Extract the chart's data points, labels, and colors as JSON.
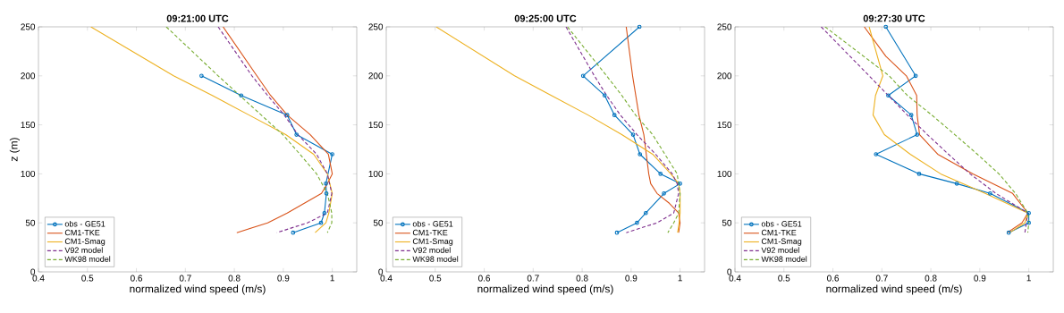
{
  "chart_data": [
    {
      "type": "line",
      "title": "09:21:00 UTC",
      "xlabel": "normalized wind speed (m/s)",
      "ylabel": "z (m)",
      "xlim": [
        0.4,
        1.05
      ],
      "ylim": [
        0,
        250
      ],
      "xticks": [
        0.4,
        0.5,
        0.6,
        0.7,
        0.8,
        0.9,
        1
      ],
      "yticks": [
        0,
        50,
        100,
        150,
        200,
        250
      ],
      "legend": "bottom left",
      "series": [
        {
          "name": "obs - GE51",
          "color": "#0072bd",
          "marker": "circle",
          "line_style": "solid",
          "x": [
            0.733,
            0.814,
            0.908,
            0.927,
            1.0,
            0.987,
            0.988,
            0.984,
            0.977,
            0.92
          ],
          "values": [
            200,
            180,
            160,
            140,
            120,
            90,
            80,
            60,
            50,
            40
          ]
        },
        {
          "name": "CM1-TKE",
          "color": "#d95319",
          "marker": "none",
          "line_style": "solid",
          "x": [
            0.777,
            0.846,
            0.874,
            0.908,
            0.955,
            0.992,
            1.0,
            0.99,
            0.978,
            0.943,
            0.908,
            0.868,
            0.805
          ],
          "values": [
            250,
            200,
            180,
            160,
            140,
            120,
            100,
            90,
            80,
            70,
            60,
            50,
            40
          ]
        },
        {
          "name": "CM1-Smag",
          "color": "#edb120",
          "marker": "none",
          "line_style": "solid",
          "x": [
            0.507,
            0.676,
            0.755,
            0.83,
            0.905,
            0.962,
            0.99,
            1.0,
            0.993,
            0.987,
            0.965
          ],
          "values": [
            250,
            200,
            180,
            160,
            140,
            120,
            100,
            80,
            60,
            50,
            40
          ]
        },
        {
          "name": "V92 model",
          "color": "#7e2f8e",
          "marker": "none",
          "line_style": "dashed",
          "x": [
            0.767,
            0.836,
            0.868,
            0.902,
            0.93,
            0.968,
            0.99,
            0.999,
            0.99,
            0.949,
            0.887
          ],
          "values": [
            250,
            200,
            180,
            160,
            140,
            120,
            100,
            80,
            60,
            50,
            40
          ]
        },
        {
          "name": "WK98 model",
          "color": "#77ac30",
          "marker": "none",
          "line_style": "dashed",
          "x": [
            0.661,
            0.767,
            0.811,
            0.855,
            0.899,
            0.934,
            0.968,
            0.99,
            0.999,
            0.999,
            0.99
          ],
          "values": [
            250,
            200,
            180,
            160,
            140,
            120,
            100,
            80,
            60,
            50,
            40
          ]
        }
      ]
    },
    {
      "type": "line",
      "title": "09:25:00 UTC",
      "xlabel": "normalized wind speed (m/s)",
      "xlim": [
        0.4,
        1.05
      ],
      "ylim": [
        0,
        250
      ],
      "xticks": [
        0.4,
        0.5,
        0.6,
        0.7,
        0.8,
        0.9,
        1
      ],
      "yticks": [
        0,
        50,
        100,
        150,
        200,
        250
      ],
      "legend": "bottom left",
      "series": [
        {
          "name": "obs - GE51",
          "color": "#0072bd",
          "marker": "circle",
          "line_style": "solid",
          "x": [
            0.917,
            0.802,
            0.846,
            0.866,
            0.904,
            0.918,
            0.96,
            1.0,
            0.967,
            0.93,
            0.912,
            0.871
          ],
          "values": [
            250,
            200,
            180,
            160,
            140,
            120,
            100,
            90,
            80,
            60,
            50,
            40
          ]
        },
        {
          "name": "CM1-TKE",
          "color": "#d95319",
          "marker": "none",
          "line_style": "solid",
          "x": [
            0.89,
            0.903,
            0.916,
            0.926,
            0.931,
            0.936,
            0.94,
            0.953,
            0.978,
            0.997,
            1.0,
            0.997
          ],
          "values": [
            250,
            200,
            160,
            140,
            120,
            100,
            90,
            80,
            70,
            60,
            50,
            40
          ]
        },
        {
          "name": "CM1-Smag",
          "color": "#edb120",
          "marker": "none",
          "line_style": "solid",
          "x": [
            0.502,
            0.662,
            0.737,
            0.812,
            0.881,
            0.944,
            0.981,
            0.997,
            1.0,
            1.0,
            0.998,
            0.995
          ],
          "values": [
            250,
            200,
            180,
            160,
            140,
            120,
            100,
            90,
            80,
            60,
            50,
            40
          ]
        },
        {
          "name": "V92 model",
          "color": "#7e2f8e",
          "marker": "none",
          "line_style": "dashed",
          "x": [
            0.767,
            0.825,
            0.85,
            0.878,
            0.912,
            0.95,
            0.984,
            0.994,
            0.997,
            0.987,
            0.953,
            0.89
          ],
          "values": [
            250,
            200,
            180,
            160,
            140,
            120,
            100,
            90,
            80,
            60,
            50,
            40
          ]
        },
        {
          "name": "WK98 model",
          "color": "#77ac30",
          "marker": "none",
          "line_style": "dashed",
          "x": [
            0.77,
            0.85,
            0.881,
            0.909,
            0.944,
            0.969,
            0.994,
            1.0,
            0.997,
            0.987,
            0.975
          ],
          "values": [
            250,
            200,
            180,
            160,
            140,
            120,
            100,
            80,
            60,
            50,
            40
          ]
        }
      ]
    },
    {
      "type": "line",
      "title": "09:27:30 UTC",
      "xlabel": "normalized wind speed (m/s)",
      "xlim": [
        0.4,
        1.05
      ],
      "ylim": [
        0,
        250
      ],
      "xticks": [
        0.4,
        0.5,
        0.6,
        0.7,
        0.8,
        0.9,
        1
      ],
      "yticks": [
        0,
        50,
        100,
        150,
        200,
        250
      ],
      "legend": "bottom left",
      "series": [
        {
          "name": "obs - GE51",
          "color": "#0072bd",
          "marker": "circle",
          "line_style": "solid",
          "x": [
            0.708,
            0.769,
            0.713,
            0.76,
            0.772,
            0.688,
            0.776,
            0.853,
            0.921,
            1.0,
            1.0,
            0.959
          ],
          "values": [
            250,
            200,
            180,
            160,
            140,
            120,
            100,
            90,
            80,
            60,
            50,
            40
          ]
        },
        {
          "name": "CM1-TKE",
          "color": "#d95319",
          "marker": "none",
          "line_style": "solid",
          "x": [
            0.664,
            0.708,
            0.75,
            0.771,
            0.772,
            0.777,
            0.814,
            0.886,
            0.967,
            0.998,
            0.986,
            0.956
          ],
          "values": [
            250,
            220,
            200,
            180,
            160,
            140,
            120,
            100,
            80,
            60,
            50,
            40
          ]
        },
        {
          "name": "CM1-Smag",
          "color": "#edb120",
          "marker": "none",
          "line_style": "solid",
          "x": [
            0.674,
            0.702,
            0.687,
            0.682,
            0.705,
            0.758,
            0.82,
            0.911,
            0.998,
            0.992,
            0.961
          ],
          "values": [
            250,
            200,
            180,
            160,
            140,
            120,
            100,
            80,
            60,
            50,
            40
          ]
        },
        {
          "name": "V92 model",
          "color": "#7e2f8e",
          "marker": "none",
          "line_style": "dashed",
          "x": [
            0.576,
            0.674,
            0.713,
            0.752,
            0.793,
            0.836,
            0.88,
            0.933,
            0.998,
            0.995,
            0.992
          ],
          "values": [
            250,
            200,
            180,
            160,
            140,
            120,
            100,
            80,
            60,
            50,
            40
          ]
        },
        {
          "name": "WK98 model",
          "color": "#77ac30",
          "marker": "none",
          "line_style": "dashed",
          "x": [
            0.584,
            0.715,
            0.752,
            0.802,
            0.849,
            0.895,
            0.939,
            0.973,
            0.998,
            1.0,
            0.998
          ],
          "values": [
            250,
            200,
            180,
            160,
            140,
            120,
            100,
            80,
            60,
            50,
            40
          ]
        }
      ]
    }
  ]
}
